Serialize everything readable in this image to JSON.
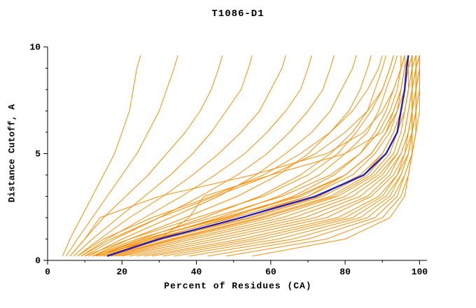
{
  "chart_data": {
    "type": "line",
    "title": "T1086-D1",
    "xlabel": "Percent of Residues (CA)",
    "ylabel": "Distance Cutoff, A",
    "xlim": [
      0,
      102
    ],
    "ylim": [
      0,
      10
    ],
    "x_ticks": [
      0,
      20,
      40,
      60,
      80,
      100
    ],
    "x_minor_ticks": [
      10,
      30,
      50,
      70,
      90
    ],
    "y_major_ticks": [
      0,
      5,
      10
    ],
    "y_minor_ticks": [
      1,
      2,
      3,
      4,
      6,
      7,
      8,
      9
    ],
    "grid": false,
    "legend": "none",
    "colors": {
      "model_curves": "#ff8c00",
      "highlight_curve": "#2020c0",
      "axis": "#000000",
      "background": "#ffffff"
    },
    "curves": {
      "description": "Each curve: percent of CA residues (x) under distance cutoff (y). Orange = individual model predictions, blue = highlighted/median model.",
      "y_grid": [
        0.2,
        1,
        2,
        3,
        4,
        5,
        6,
        7,
        8,
        9,
        9.6
      ],
      "blue_x": [
        16,
        30,
        52,
        72,
        85,
        91,
        94,
        95,
        96,
        96.5,
        97
      ],
      "orange_x": [
        [
          4,
          6,
          9,
          12,
          15,
          18,
          20,
          22,
          23,
          24,
          25
        ],
        [
          5,
          8,
          12,
          16,
          20,
          24,
          27,
          30,
          32,
          34,
          35
        ],
        [
          6,
          10,
          15,
          21,
          27,
          32,
          37,
          41,
          44,
          46,
          47
        ],
        [
          7,
          12,
          19,
          26,
          33,
          39,
          44,
          48,
          52,
          54,
          55
        ],
        [
          8,
          14,
          22,
          31,
          39,
          46,
          52,
          57,
          60,
          63,
          64
        ],
        [
          9,
          16,
          26,
          36,
          45,
          53,
          59,
          64,
          68,
          70,
          71
        ],
        [
          10,
          18,
          30,
          41,
          51,
          59,
          65,
          70,
          74,
          76,
          77
        ],
        [
          11,
          20,
          33,
          46,
          56,
          64,
          71,
          76,
          79,
          82,
          83
        ],
        [
          12,
          22,
          37,
          51,
          62,
          70,
          76,
          81,
          84,
          86,
          87
        ],
        [
          13,
          25,
          42,
          57,
          68,
          76,
          82,
          86,
          88,
          90,
          91
        ],
        [
          14,
          27,
          46,
          62,
          73,
          80,
          86,
          89,
          91,
          93,
          94
        ],
        [
          15,
          29,
          49,
          66,
          77,
          84,
          88,
          91,
          93,
          95,
          95
        ],
        [
          16,
          31,
          52,
          70,
          80,
          87,
          91,
          93,
          95,
          96,
          96
        ],
        [
          12,
          24,
          44,
          63,
          76,
          84,
          89,
          92,
          94,
          95,
          96
        ],
        [
          13,
          26,
          48,
          68,
          80,
          87,
          91,
          94,
          95,
          96,
          97
        ],
        [
          15,
          30,
          54,
          73,
          84,
          90,
          93,
          95,
          96,
          97,
          97
        ],
        [
          16,
          33,
          57,
          76,
          86,
          91,
          94,
          96,
          97,
          97,
          98
        ],
        [
          17,
          35,
          60,
          78,
          88,
          93,
          95,
          96,
          97,
          98,
          98
        ],
        [
          18,
          37,
          63,
          80,
          89,
          94,
          96,
          97,
          98,
          98,
          98
        ],
        [
          19,
          39,
          66,
          82,
          90,
          94,
          96,
          97,
          98,
          98,
          99
        ],
        [
          20,
          42,
          69,
          84,
          91,
          95,
          97,
          98,
          98,
          99,
          99
        ],
        [
          22,
          45,
          72,
          86,
          92,
          95,
          97,
          98,
          98,
          99,
          99
        ],
        [
          24,
          48,
          75,
          87,
          93,
          96,
          97,
          98,
          99,
          99,
          99
        ],
        [
          26,
          52,
          78,
          89,
          94,
          96,
          98,
          98,
          99,
          99,
          99
        ],
        [
          28,
          55,
          80,
          90,
          94,
          97,
          98,
          98,
          99,
          99,
          100
        ],
        [
          31,
          58,
          82,
          91,
          95,
          97,
          98,
          99,
          99,
          99,
          100
        ],
        [
          34,
          62,
          84,
          92,
          95,
          97,
          98,
          99,
          99,
          100,
          100
        ],
        [
          38,
          66,
          86,
          93,
          96,
          98,
          98,
          99,
          99,
          100,
          100
        ],
        [
          43,
          70,
          88,
          94,
          96,
          98,
          99,
          99,
          100,
          100,
          100
        ],
        [
          48,
          75,
          90,
          95,
          97,
          98,
          99,
          99,
          100,
          100,
          100
        ],
        [
          55,
          80,
          92,
          96,
          97,
          98,
          99,
          100,
          100,
          100,
          100
        ],
        [
          10,
          22,
          40,
          58,
          70,
          78,
          83,
          87,
          90,
          92,
          93
        ],
        [
          8,
          15,
          28,
          44,
          58,
          68,
          76,
          82,
          86,
          89,
          90
        ],
        [
          14,
          28,
          50,
          70,
          82,
          88,
          92,
          94,
          96,
          97,
          97
        ],
        [
          13,
          26,
          47,
          67,
          80,
          87,
          91,
          94,
          95,
          96,
          97
        ],
        [
          15,
          31,
          55,
          74,
          85,
          90,
          93,
          95,
          96,
          97,
          98
        ],
        [
          17,
          34,
          58,
          77,
          87,
          92,
          94,
          96,
          97,
          98,
          98
        ],
        [
          9,
          17,
          30,
          45,
          60,
          72,
          80,
          86,
          90,
          92,
          93
        ],
        [
          12,
          30,
          38,
          42,
          60,
          80,
          90,
          93,
          95,
          96,
          97
        ],
        [
          6,
          10,
          14,
          30,
          55,
          75,
          85,
          90,
          93,
          95,
          96
        ]
      ]
    }
  }
}
